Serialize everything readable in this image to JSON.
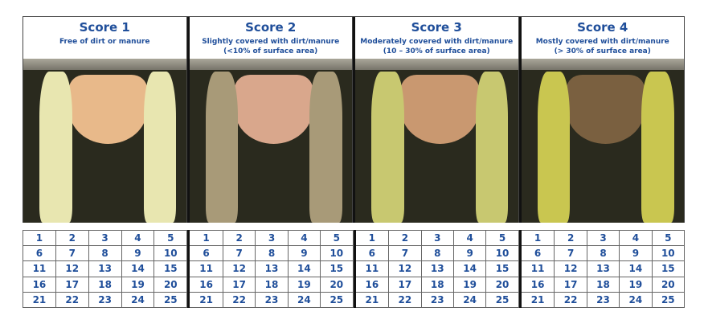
{
  "panels": [
    {
      "title": "Score 1",
      "description": "Free of dirt or manure",
      "note": "",
      "colors": {
        "udder": "#e8b98a",
        "leg": "#e8e6b0"
      }
    },
    {
      "title": "Score 2",
      "description": "Slightly covered with dirt/manure",
      "note": "(<10% of surface area)",
      "colors": {
        "udder": "#d9a78c",
        "leg": "#a89a78"
      }
    },
    {
      "title": "Score 3",
      "description": "Moderately covered with dirt/manure",
      "note": "(10 – 30% of surface area)",
      "colors": {
        "udder": "#c99870",
        "leg": "#c8c870"
      }
    },
    {
      "title": "Score 4",
      "description": "Mostly covered with dirt/manure",
      "note": "(> 30% of surface area)",
      "colors": {
        "udder": "#7a6040",
        "leg": "#c9c650"
      }
    }
  ],
  "grid_rows": [
    [
      "1",
      "2",
      "3",
      "4",
      "5"
    ],
    [
      "6",
      "7",
      "8",
      "9",
      "10"
    ],
    [
      "11",
      "12",
      "13",
      "14",
      "15"
    ],
    [
      "16",
      "17",
      "18",
      "19",
      "20"
    ],
    [
      "21",
      "22",
      "23",
      "24",
      "25"
    ]
  ],
  "accent": "#1f4e9a"
}
